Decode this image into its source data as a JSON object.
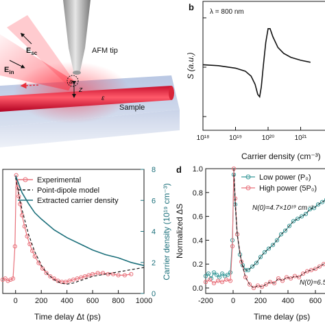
{
  "panels": {
    "a": {
      "labels": {
        "afm_tip": "AFM tip",
        "e_sc": "E",
        "e_sc_sub": "sc",
        "e_in": "E",
        "e_in_sub": "in",
        "a": "a",
        "z": "z",
        "epsilon": "ε",
        "sample": "Sample"
      }
    },
    "b": {
      "letter": "b",
      "annotation": "λ = 800 nm"
    },
    "c": {},
    "d": {
      "letter": "d"
    }
  },
  "chart_data": [
    {
      "panel": "b",
      "type": "line",
      "ylabel": "S (a.u.)",
      "xlabel": "Carrier density (cm⁻³)",
      "x_scale": "log",
      "xlim": [
        1e+18,
        1e+22
      ],
      "x_ticks": [
        "10¹⁸",
        "10¹⁹",
        "10²⁰",
        "10²¹"
      ],
      "y_ticks": "none",
      "series": [
        {
          "x": [
            1e+18,
            3e+18,
            1e+19,
            2e+19,
            3e+19,
            4e+19,
            4.8e+19,
            5.5e+19,
            6.2e+19,
            7.2e+19,
            8.5e+19,
            1e+20,
            1.15e+20,
            1.4e+20,
            2e+20,
            3e+20,
            5e+20,
            1e+21,
            2e+21
          ],
          "y": [
            0.05,
            0.03,
            -0.02,
            -0.08,
            -0.18,
            -0.35,
            -0.55,
            -0.6,
            -0.4,
            0.05,
            0.5,
            0.78,
            0.78,
            0.62,
            0.4,
            0.28,
            0.2,
            0.14,
            0.1
          ]
        }
      ]
    },
    {
      "panel": "c",
      "type": "line",
      "xlabel": "Time delay Δt (ps)",
      "ylabel_right": "Carrier density (10¹⁹ cm⁻³)",
      "xlim": [
        -100,
        1000
      ],
      "x_ticks": [
        0,
        200,
        400,
        600,
        800,
        1000
      ],
      "y_right_lim": [
        0,
        8
      ],
      "y_right_ticks": [
        0,
        2,
        4,
        6,
        8
      ],
      "legend": "top-right",
      "series": [
        {
          "name": "Experimental",
          "style": "circles-line",
          "color": "#e8707a",
          "x": [
            -100,
            -80,
            -60,
            -40,
            -20,
            -5,
            5,
            15,
            25,
            35,
            50,
            70,
            90,
            110,
            130,
            150,
            180,
            210,
            240,
            270,
            300,
            330,
            360,
            390,
            420,
            450,
            480,
            510,
            540,
            570,
            600,
            640,
            680,
            720,
            760,
            800,
            850,
            900
          ],
          "y_norm": [
            0.05,
            0.06,
            0.04,
            0.05,
            0.06,
            0.35,
            0.99,
            0.88,
            0.8,
            0.73,
            0.63,
            0.53,
            0.44,
            0.37,
            0.31,
            0.26,
            0.2,
            0.15,
            0.11,
            0.08,
            0.06,
            0.04,
            0.03,
            0.03,
            0.04,
            0.05,
            0.06,
            0.07,
            0.08,
            0.09,
            0.1,
            0.11,
            0.11,
            0.1,
            0.1,
            0.09,
            0.09,
            0.1
          ]
        },
        {
          "name": "Point-dipole model",
          "style": "dashed",
          "color": "#1a1a1a",
          "x": [
            0,
            20,
            50,
            100,
            150,
            200,
            250,
            300,
            350,
            400,
            450,
            500,
            550,
            600,
            700,
            800,
            900,
            1000
          ],
          "y_norm": [
            0.97,
            0.85,
            0.68,
            0.46,
            0.3,
            0.18,
            0.1,
            0.05,
            0.02,
            0.01,
            0.02,
            0.04,
            0.06,
            0.08,
            0.1,
            0.12,
            0.14,
            0.16
          ]
        },
        {
          "name": "Extracted carrier density",
          "style": "solid",
          "color": "#1b6f7a",
          "axis": "right",
          "x": [
            0,
            50,
            100,
            150,
            200,
            300,
            400,
            500,
            600,
            700,
            800,
            900,
            1000
          ],
          "y": [
            7.6,
            6.5,
            5.8,
            5.2,
            4.8,
            4.1,
            3.6,
            3.2,
            2.8,
            2.5,
            2.3,
            2.0,
            1.8
          ]
        }
      ]
    },
    {
      "panel": "d",
      "type": "line",
      "xlabel": "Time delay (ps)",
      "ylabel": "Normalized ΔS",
      "xlim": [
        -200,
        700
      ],
      "ylim": [
        0.0,
        1.0
      ],
      "x_ticks": [
        -200,
        0,
        200,
        400,
        600
      ],
      "y_ticks": [
        0.0,
        0.2,
        0.4,
        0.6,
        0.8,
        1.0
      ],
      "legend": "top-right",
      "annotations": [
        "N(0)=4.7×10¹⁹ cm⁻³",
        "N(0)=6.5"
      ],
      "series": [
        {
          "name": "Low power (P₀)",
          "color": "#3a9a9a",
          "style": "circles-line",
          "x": [
            -200,
            -180,
            -160,
            -140,
            -120,
            -100,
            -80,
            -60,
            -40,
            -20,
            -5,
            5,
            15,
            30,
            50,
            70,
            90,
            110,
            140,
            170,
            200,
            230,
            260,
            290,
            320,
            350,
            380,
            410,
            440,
            470,
            500,
            530,
            560,
            590,
            620,
            650,
            680
          ],
          "y": [
            0.1,
            0.12,
            0.08,
            0.13,
            0.11,
            0.09,
            0.12,
            0.1,
            0.11,
            0.13,
            0.4,
            0.95,
            0.7,
            0.45,
            0.28,
            0.19,
            0.15,
            0.15,
            0.18,
            0.21,
            0.26,
            0.3,
            0.33,
            0.36,
            0.4,
            0.45,
            0.48,
            0.52,
            0.56,
            0.58,
            0.6,
            0.62,
            0.66,
            0.67,
            0.7,
            0.72,
            0.74
          ]
        },
        {
          "name": "High power (5P₀)",
          "color": "#e8707a",
          "style": "circles-line",
          "x": [
            -200,
            -170,
            -140,
            -110,
            -80,
            -50,
            -20,
            -5,
            5,
            15,
            30,
            60,
            90,
            120,
            150,
            180,
            210,
            240,
            270,
            300,
            330,
            360,
            390,
            420,
            450,
            480,
            510,
            540,
            570,
            600,
            630,
            660,
            690
          ],
          "y": [
            0.05,
            0.07,
            0.04,
            0.06,
            0.05,
            0.07,
            0.06,
            0.35,
            1.0,
            0.75,
            0.45,
            0.22,
            0.09,
            0.03,
            0.0,
            0.02,
            0.01,
            0.03,
            0.05,
            0.04,
            0.08,
            0.06,
            0.09,
            0.08,
            0.1,
            0.09,
            0.12,
            0.14,
            0.15,
            0.16,
            0.18,
            0.2,
            0.22
          ]
        }
      ]
    }
  ]
}
